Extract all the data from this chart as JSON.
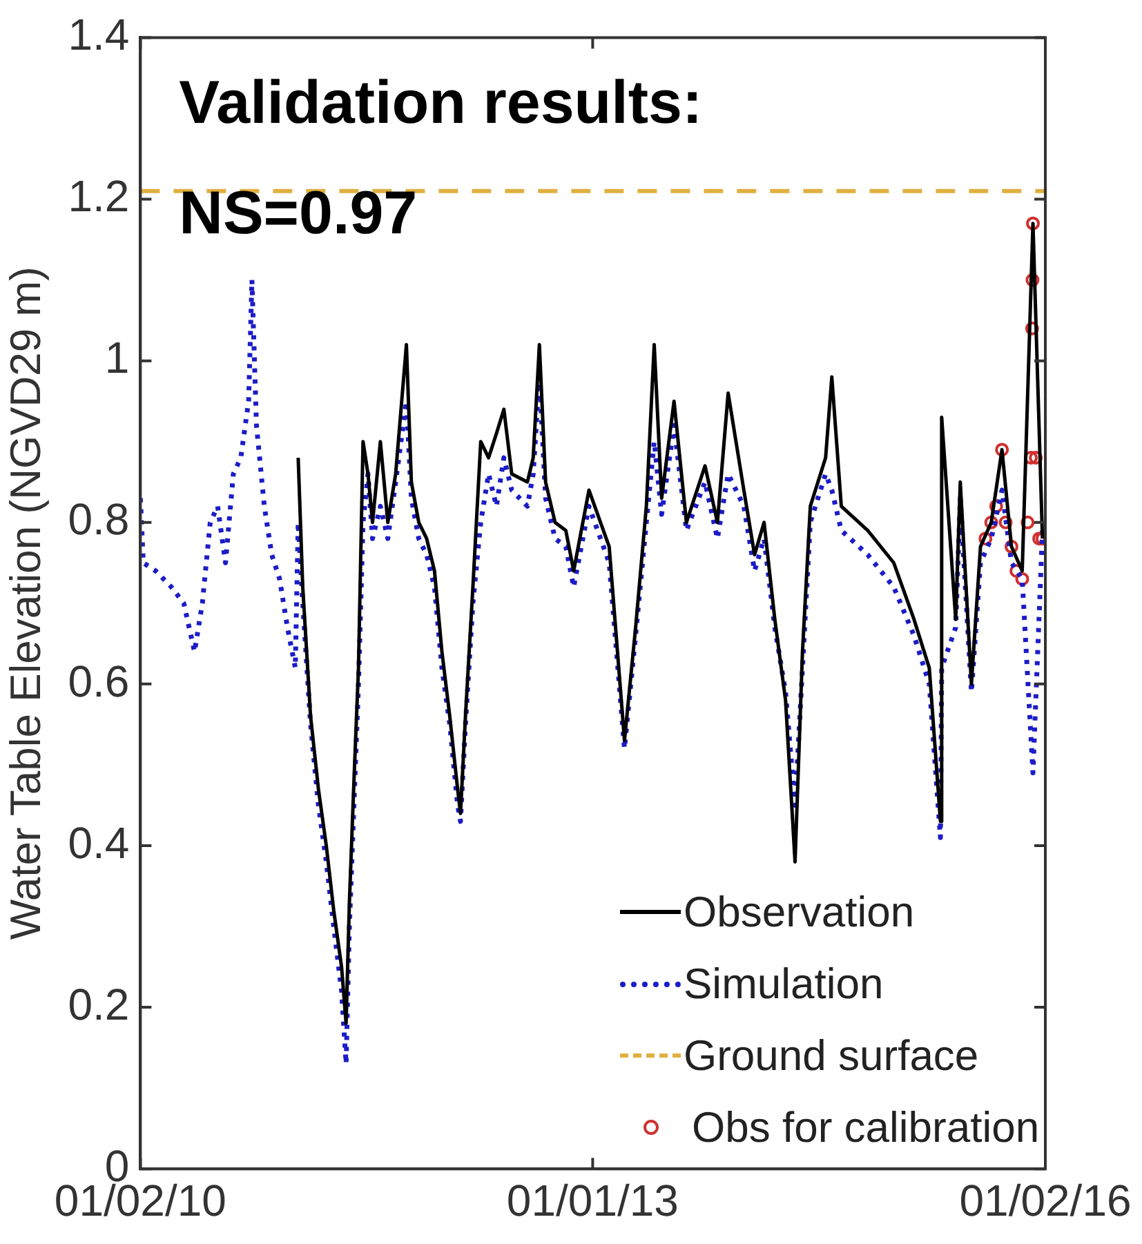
{
  "chart_data": {
    "type": "line",
    "ylabel": "Water Table Elevation (NGVD29 m)",
    "annotations": [
      "Validation results:",
      "NS=0.97"
    ],
    "xlim": [
      "2010-01-02",
      "2016-01-02"
    ],
    "xticks": [
      {
        "value": "2010-01-02",
        "label": "01/02/10"
      },
      {
        "value": "2013-01-01",
        "label": "01/01/13"
      },
      {
        "value": "2016-01-02",
        "label": "01/02/16"
      }
    ],
    "ylim": [
      0,
      1.4
    ],
    "yticks": [
      0,
      {
        "value": 0.2,
        "label": "0.2"
      },
      {
        "value": 0.4,
        "label": "0.4"
      },
      {
        "value": 0.6,
        "label": "0.6"
      },
      {
        "value": 0.8,
        "label": "0.8"
      },
      1,
      {
        "value": 1.2,
        "label": "1.2"
      },
      {
        "value": 1.4,
        "label": "1.4"
      }
    ],
    "legend": "bottom right",
    "ref_lines": [
      {
        "axis": "y",
        "value": 1.21,
        "label": "Ground surface",
        "color": "#e0b040",
        "line_style": "dashed"
      }
    ],
    "series": [
      {
        "name": "Observation",
        "color": "#000000",
        "line_style": "solid",
        "marker": "none",
        "x": [
          "2011-01-19",
          "2011-01-30",
          "2011-02-18",
          "2011-03-09",
          "2011-03-28",
          "2011-04-15",
          "2011-05-04",
          "2011-05-15",
          "2011-05-23",
          "2011-06-03",
          "2011-06-14",
          "2011-06-25",
          "2011-07-07",
          "2011-07-18",
          "2011-08-06",
          "2011-08-24",
          "2011-09-12",
          "2011-10-08",
          "2011-10-20",
          "2011-11-07",
          "2011-11-26",
          "2011-12-15",
          "2012-01-02",
          "2012-01-21",
          "2012-02-09",
          "2012-02-16",
          "2012-02-28",
          "2012-03-17",
          "2012-04-05",
          "2012-04-24",
          "2012-05-13",
          "2012-05-31",
          "2012-06-19",
          "2012-07-27",
          "2012-08-10",
          "2012-08-25",
          "2012-09-09",
          "2012-10-02",
          "2012-10-28",
          "2012-11-16",
          "2012-12-23",
          "2013-02-10",
          "2013-03-19",
          "2013-04-15",
          "2013-05-11",
          "2013-05-30",
          "2013-06-17",
          "2013-07-17",
          "2013-08-16",
          "2013-09-30",
          "2013-10-30",
          "2013-11-25",
          "2014-01-02",
          "2014-01-28",
          "2014-02-20",
          "2014-03-18",
          "2014-04-13",
          "2014-05-06",
          "2014-05-24",
          "2014-06-12",
          "2014-07-19",
          "2014-08-03",
          "2014-08-26",
          "2014-10-29",
          "2014-12-31",
          "2015-02-18",
          "2015-03-27",
          "2015-04-23",
          "2015-04-26",
          "2015-05-30",
          "2015-06-10",
          "2015-07-07",
          "2015-07-29",
          "2015-08-24",
          "2015-09-19",
          "2015-10-12",
          "2015-11-07",
          "2015-12-03",
          "2015-12-26"
        ],
        "values": [
          0.88,
          0.72,
          0.56,
          0.47,
          0.4,
          0.32,
          0.25,
          0.18,
          0.33,
          0.48,
          0.62,
          0.9,
          0.86,
          0.8,
          0.9,
          0.8,
          0.86,
          1.02,
          0.85,
          0.8,
          0.78,
          0.74,
          0.64,
          0.56,
          0.47,
          0.44,
          0.56,
          0.72,
          0.9,
          0.88,
          0.91,
          0.94,
          0.86,
          0.85,
          0.88,
          1.02,
          0.85,
          0.8,
          0.79,
          0.74,
          0.84,
          0.77,
          0.53,
          0.67,
          0.82,
          1.02,
          0.83,
          0.95,
          0.8,
          0.87,
          0.8,
          0.96,
          0.84,
          0.76,
          0.8,
          0.68,
          0.58,
          0.38,
          0.64,
          0.82,
          0.88,
          0.98,
          0.82,
          0.79,
          0.75,
          0.68,
          0.62,
          0.43,
          0.93,
          0.68,
          0.85,
          0.6,
          0.77,
          0.8,
          0.89,
          0.77,
          0.74,
          1.17,
          0.78
        ]
      },
      {
        "name": "Simulation",
        "color": "#1c1cc8",
        "line_style": "dotted",
        "marker": "none",
        "x": [
          "2010-01-02",
          "2010-01-09",
          "2010-02-08",
          "2010-03-18",
          "2010-04-17",
          "2010-05-13",
          "2010-06-01",
          "2010-06-20",
          "2010-07-08",
          "2010-07-27",
          "2010-08-15",
          "2010-09-02",
          "2010-09-21",
          "2010-09-29",
          "2010-10-10",
          "2010-10-29",
          "2010-11-16",
          "2010-12-05",
          "2010-12-24",
          "2011-01-12",
          "2011-01-19",
          "2011-01-30",
          "2011-02-18",
          "2011-03-09",
          "2011-03-28",
          "2011-04-15",
          "2011-05-04",
          "2011-05-15",
          "2011-05-23",
          "2011-06-03",
          "2011-06-14",
          "2011-06-25",
          "2011-07-07",
          "2011-07-18",
          "2011-08-06",
          "2011-08-24",
          "2011-09-12",
          "2011-10-08",
          "2011-10-20",
          "2011-11-07",
          "2011-11-26",
          "2011-12-15",
          "2012-01-02",
          "2012-01-21",
          "2012-02-09",
          "2012-02-16",
          "2012-02-28",
          "2012-03-17",
          "2012-04-05",
          "2012-04-24",
          "2012-05-13",
          "2012-05-31",
          "2012-06-19",
          "2012-07-27",
          "2012-08-10",
          "2012-08-25",
          "2012-09-09",
          "2012-10-02",
          "2012-10-28",
          "2012-11-16",
          "2012-12-23",
          "2013-02-10",
          "2013-03-19",
          "2013-04-15",
          "2013-05-11",
          "2013-05-30",
          "2013-06-17",
          "2013-07-17",
          "2013-08-16",
          "2013-09-30",
          "2013-10-30",
          "2013-11-25",
          "2014-01-02",
          "2014-01-28",
          "2014-02-20",
          "2014-03-18",
          "2014-04-13",
          "2014-05-06",
          "2014-05-24",
          "2014-06-12",
          "2014-07-19",
          "2014-08-03",
          "2014-08-26",
          "2014-10-29",
          "2014-12-31",
          "2015-02-18",
          "2015-03-27",
          "2015-04-23",
          "2015-04-26",
          "2015-05-30",
          "2015-06-10",
          "2015-07-07",
          "2015-07-29",
          "2015-08-24",
          "2015-09-19",
          "2015-10-12",
          "2015-11-07",
          "2015-12-03",
          "2015-12-26"
        ],
        "values": [
          0.83,
          0.75,
          0.74,
          0.72,
          0.7,
          0.64,
          0.7,
          0.8,
          0.82,
          0.75,
          0.86,
          0.88,
          0.95,
          1.1,
          0.92,
          0.82,
          0.76,
          0.73,
          0.67,
          0.62,
          0.8,
          0.7,
          0.55,
          0.45,
          0.38,
          0.3,
          0.22,
          0.13,
          0.3,
          0.45,
          0.6,
          0.8,
          0.86,
          0.78,
          0.82,
          0.78,
          0.85,
          0.95,
          0.83,
          0.78,
          0.76,
          0.72,
          0.62,
          0.55,
          0.45,
          0.43,
          0.55,
          0.7,
          0.8,
          0.86,
          0.82,
          0.88,
          0.84,
          0.82,
          0.86,
          0.98,
          0.83,
          0.78,
          0.77,
          0.72,
          0.82,
          0.75,
          0.52,
          0.66,
          0.8,
          0.9,
          0.81,
          0.92,
          0.79,
          0.85,
          0.78,
          0.86,
          0.82,
          0.74,
          0.78,
          0.67,
          0.59,
          0.45,
          0.62,
          0.8,
          0.86,
          0.84,
          0.79,
          0.76,
          0.72,
          0.66,
          0.6,
          0.41,
          0.62,
          0.67,
          0.83,
          0.59,
          0.75,
          0.78,
          0.84,
          0.75,
          0.73,
          0.49,
          0.79
        ]
      },
      {
        "name": "Obs for calibration",
        "type": "scatter",
        "color": "#d03030",
        "marker": "circle",
        "x": [
          "2015-08-10",
          "2015-08-24",
          "2015-09-05",
          "2015-09-19",
          "2015-09-28",
          "2015-10-12",
          "2015-10-24",
          "2015-11-07",
          "2015-11-20",
          "2015-11-28",
          "2015-12-01",
          "2015-12-02",
          "2015-12-03",
          "2015-12-10",
          "2015-12-18",
          "2015-12-26"
        ],
        "values": [
          0.78,
          0.8,
          0.82,
          0.89,
          0.8,
          0.77,
          0.74,
          0.73,
          0.8,
          0.88,
          1.04,
          1.1,
          1.17,
          0.88,
          0.78,
          0.78
        ]
      }
    ]
  }
}
